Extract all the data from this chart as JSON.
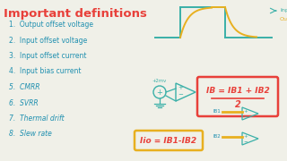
{
  "title": "Important definitions",
  "title_color": "#e8403a",
  "title_fontsize": 9.5,
  "bg_color": "#f0f0e8",
  "items": [
    "1.  Output offset voltage",
    "2.  Input offset voltage",
    "3.  Input offset current",
    "4.  Input bias current",
    "5.  CMRR",
    "6.  SVRR",
    "7.  Thermal drift",
    "8.  Slew rate"
  ],
  "items_color": "#2090b0",
  "items_fontsize": 5.5,
  "formula1_num": "IB = IB1 + IB2",
  "formula1_den": "2",
  "formula1_color": "#e8403a",
  "formula1_box_color": "#e8403a",
  "formula2": "Iio = IB1-IB2",
  "formula2_color": "#e8403a",
  "formula2_box_color": "#e8b020",
  "opamp_color": "#3ab0a8",
  "slew_input_color": "#3ab0a8",
  "slew_output_color": "#e8b020",
  "label_input": "Input",
  "label_output": "Output",
  "label_input_color": "#3ab0a8",
  "label_output_color": "#e8b020",
  "ib1_label": "IB1",
  "ib2_label": "IB2",
  "ib_labels_color": "#2090b0",
  "voltage_label": "+2mv",
  "voltage_label_color": "#3ab0a8",
  "gray": "#888888"
}
